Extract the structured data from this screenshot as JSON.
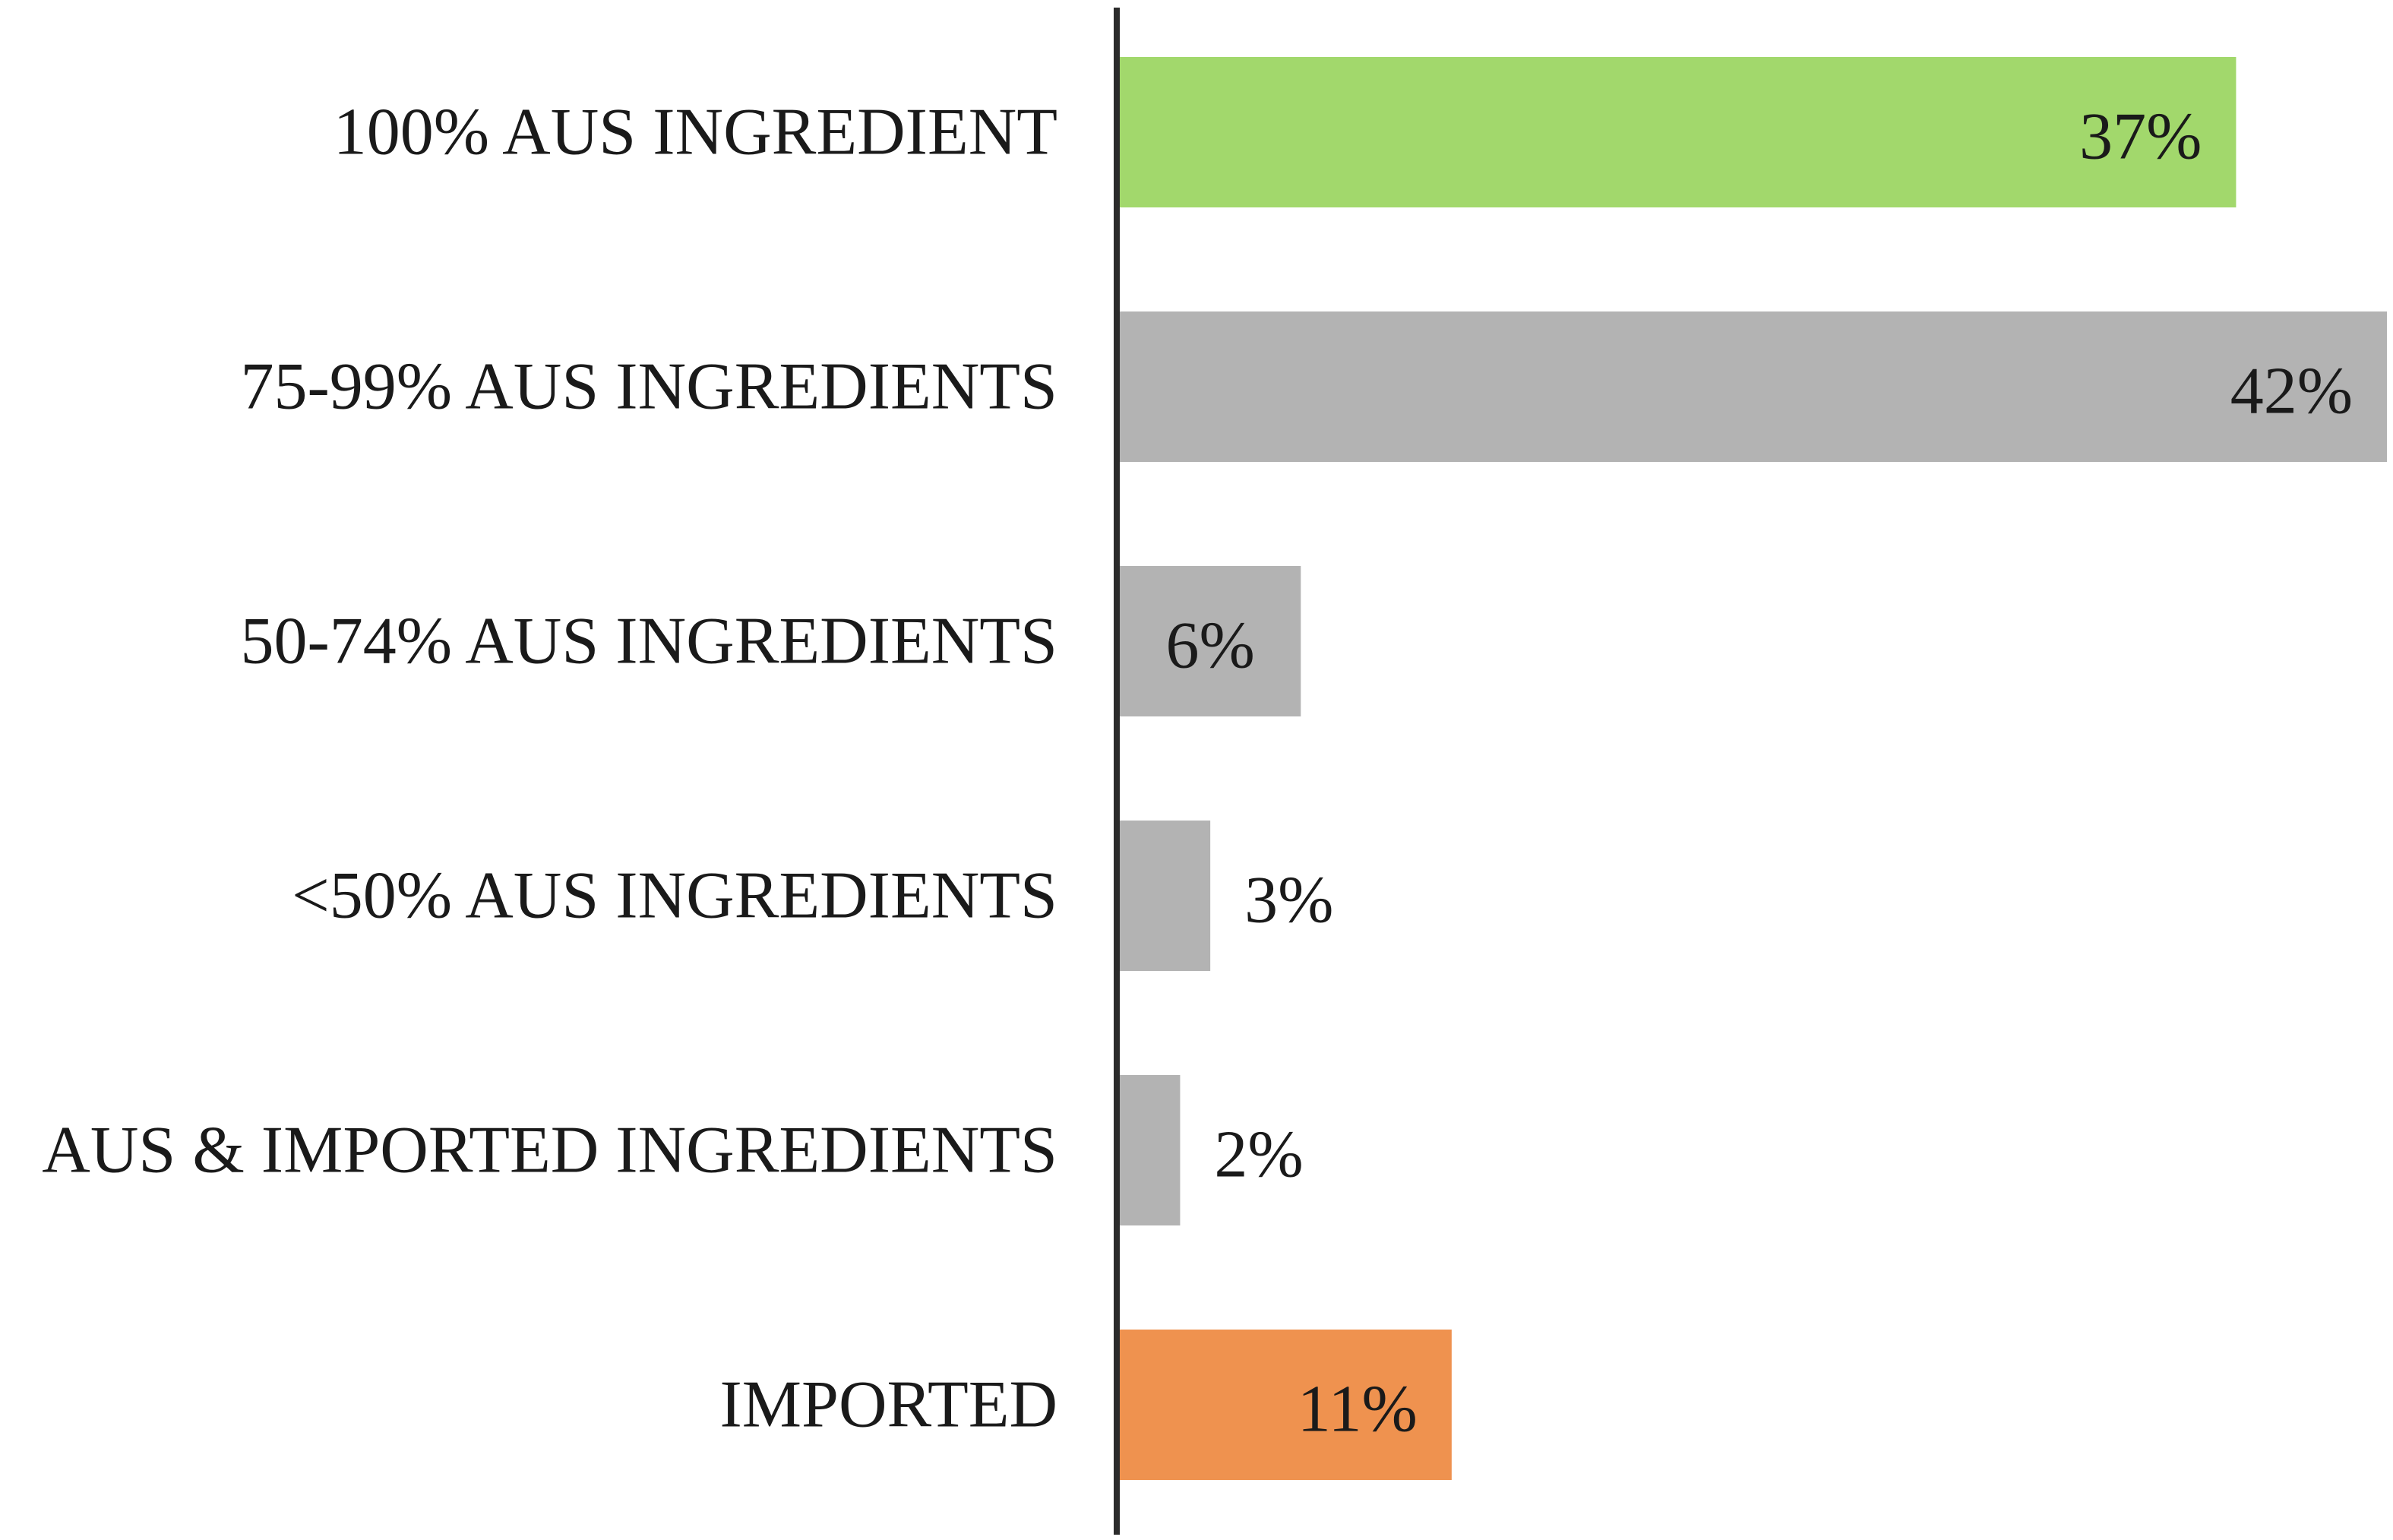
{
  "chart_data": {
    "type": "bar",
    "orientation": "horizontal",
    "categories": [
      "100% AUS INGREDIENT",
      "75-99% AUS INGREDIENTS",
      "50-74% AUS INGREDIENTS",
      "<50% AUS INGREDIENTS",
      "AUS & IMPORTED INGREDIENTS",
      "IMPORTED"
    ],
    "values": [
      37,
      42,
      6,
      3,
      2,
      11
    ],
    "data_labels": [
      "37%",
      "42%",
      "6%",
      "3%",
      "2%",
      "11%"
    ],
    "unit": "%",
    "colors": [
      "#a2d86c",
      "#b3b3b3",
      "#b3b3b3",
      "#b3b3b3",
      "#b3b3b3",
      "#ef924f"
    ],
    "axis_color": "#2b2b2b",
    "xlim": [
      0,
      42
    ],
    "grid": false,
    "legend": "none",
    "title": "",
    "xlabel": "",
    "ylabel": ""
  }
}
